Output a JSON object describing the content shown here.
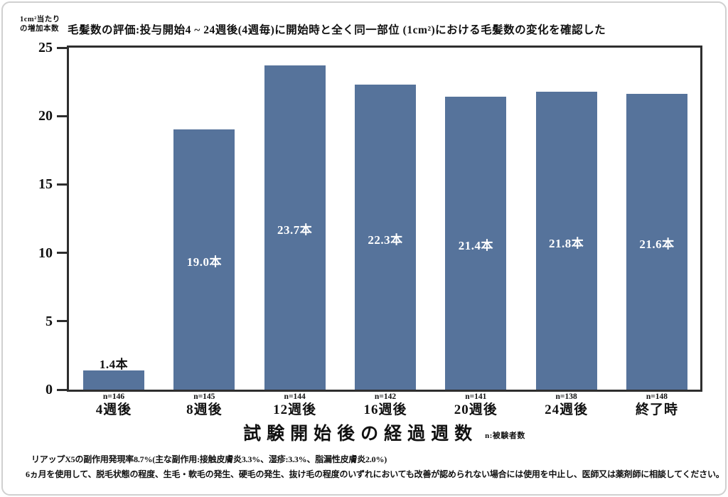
{
  "chart_data": {
    "type": "bar",
    "title": "毛髪数の評価:投与開始4 ~ 24週後(4週毎)に開始時と全く同一部位 (1cm²)における毛髪数の変化を確認した",
    "y_axis_title_lines": [
      "1cm²当たり",
      "の増加本数"
    ],
    "categories": [
      "4週後",
      "8週後",
      "12週後",
      "16週後",
      "20週後",
      "24週後",
      "終了時"
    ],
    "values": [
      1.4,
      19.0,
      23.7,
      22.3,
      21.4,
      21.8,
      21.6
    ],
    "value_labels": [
      "1.4本",
      "19.0本",
      "23.7本",
      "22.3本",
      "21.4本",
      "21.8本",
      "21.6本"
    ],
    "n_labels": [
      "n=146",
      "n=145",
      "n=144",
      "n=142",
      "n=141",
      "n=138",
      "n=148"
    ],
    "xlabel": "試験開始後の経過週数",
    "xlabel_note": "n:被験者数",
    "y_ticks": [
      0,
      5,
      10,
      15,
      20,
      25
    ],
    "ylim": [
      0,
      25
    ],
    "grid": false,
    "legend": "none",
    "bar_color": "#56739B",
    "axis_color": "#2e2e2e",
    "footnotes": [
      "リアップX5の副作用発現率8.7%(主な副作用:接触皮膚炎3.3%、湿疹:3.3%、脂漏性皮膚炎2.0%)",
      "6ヵ月を使用して、脱毛状態の程度、生毛・軟毛の発生、硬毛の発生、抜け毛の程度のいずれにおいても改善が認められない場合には使用を中止し、医師又は薬剤師に相談してください。"
    ]
  }
}
